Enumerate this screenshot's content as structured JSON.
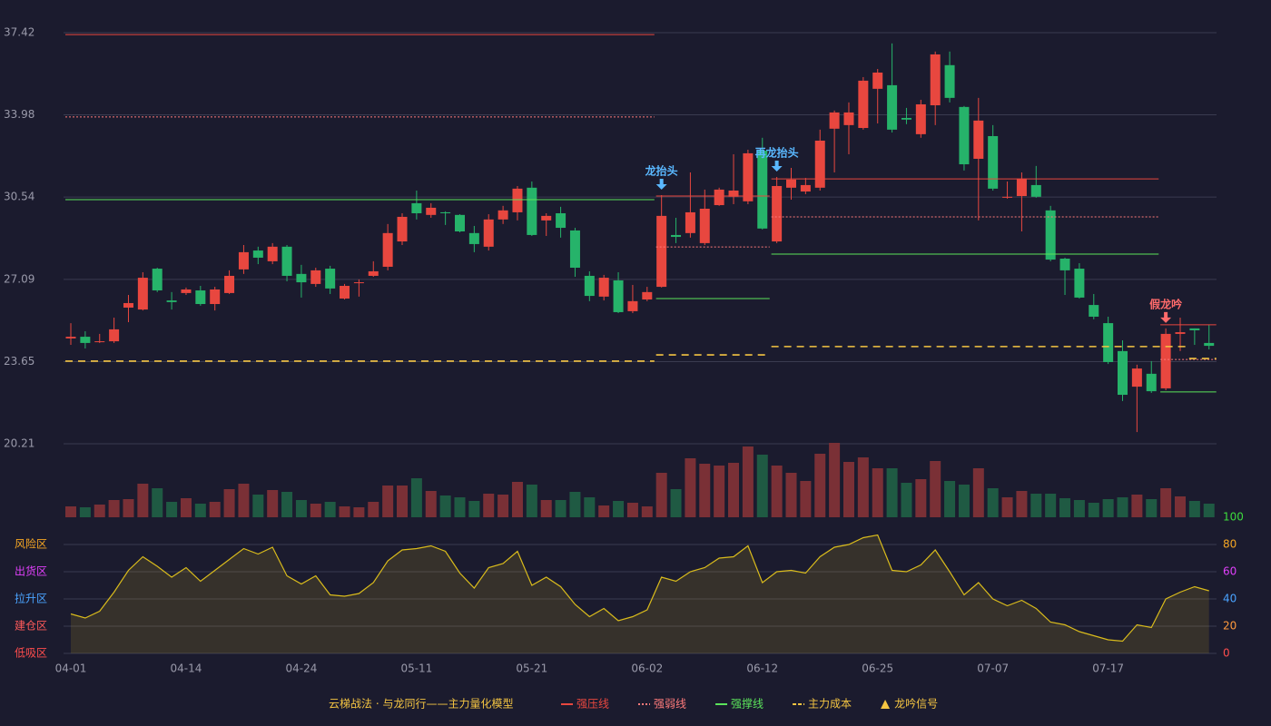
{
  "chart_data": [
    {
      "type": "candlestick",
      "categories": [
        "04-01",
        null,
        null,
        null,
        null,
        null,
        null,
        null,
        "04-14",
        null,
        null,
        null,
        null,
        null,
        null,
        null,
        "04-24",
        null,
        null,
        null,
        null,
        null,
        null,
        null,
        "05-11",
        null,
        null,
        null,
        null,
        null,
        null,
        null,
        "05-21",
        null,
        null,
        null,
        null,
        null,
        null,
        null,
        "06-02",
        null,
        null,
        null,
        null,
        null,
        null,
        null,
        "06-12",
        null,
        null,
        null,
        null,
        null,
        null,
        null,
        "06-25",
        null,
        null,
        null,
        null,
        null,
        null,
        null,
        "07-07",
        null,
        null,
        null,
        null,
        null,
        null,
        null,
        "07-17",
        null,
        null,
        null,
        null,
        null,
        null,
        null
      ],
      "open": [
        24.62,
        24.69,
        24.47,
        24.5,
        25.91,
        25.83,
        27.54,
        26.21,
        26.52,
        26.63,
        26.06,
        26.52,
        27.51,
        28.3,
        27.85,
        28.46,
        27.32,
        26.9,
        27.54,
        26.29,
        26.94,
        27.24,
        27.62,
        28.68,
        30.28,
        29.79,
        29.9,
        29.79,
        29.03,
        28.46,
        29.6,
        29.9,
        30.93,
        29.56,
        29.86,
        29.14,
        27.24,
        26.37,
        27.05,
        25.76,
        26.25,
        26.78,
        28.95,
        29.03,
        28.61,
        30.2,
        30.55,
        30.36,
        32.48,
        28.68,
        30.93,
        30.77,
        30.93,
        33.4,
        33.55,
        33.43,
        35.07,
        35.22,
        33.85,
        33.17,
        34.38,
        36.06,
        34.31,
        32.14,
        33.09,
        30.51,
        30.58,
        31.04,
        29.98,
        27.96,
        27.54,
        26.02,
        25.26,
        24.09,
        22.6,
        23.14,
        22.53,
        24.81,
        25.04,
        24.43
      ],
      "high": [
        25.26,
        24.92,
        24.81,
        25.49,
        26.44,
        27.39,
        27.58,
        26.56,
        26.75,
        26.82,
        26.78,
        27.47,
        28.53,
        28.46,
        28.61,
        28.53,
        27.7,
        27.58,
        27.66,
        26.9,
        27.09,
        27.85,
        29.41,
        29.86,
        30.81,
        30.28,
        29.94,
        29.82,
        29.33,
        29.82,
        30.17,
        31.0,
        31.19,
        29.86,
        30.13,
        29.25,
        27.43,
        27.28,
        27.39,
        26.86,
        26.78,
        30.62,
        29.67,
        31.57,
        30.85,
        30.93,
        32.33,
        32.52,
        33.02,
        31.38,
        31.76,
        31.34,
        33.36,
        34.16,
        34.5,
        35.56,
        35.9,
        36.97,
        34.27,
        34.61,
        36.63,
        36.63,
        34.35,
        34.69,
        33.55,
        31.19,
        31.57,
        31.84,
        30.17,
        28.0,
        27.77,
        26.48,
        25.53,
        24.54,
        23.52,
        23.67,
        25.04,
        25.49,
        25.04,
        25.19
      ],
      "low": [
        24.35,
        24.2,
        24.43,
        24.43,
        25.3,
        25.79,
        26.56,
        25.83,
        26.44,
        25.99,
        25.79,
        26.48,
        27.32,
        27.73,
        27.73,
        27.01,
        26.33,
        26.78,
        26.48,
        26.25,
        26.37,
        27.2,
        27.47,
        28.53,
        29.6,
        29.67,
        29.37,
        29.06,
        28.23,
        28.3,
        29.41,
        29.56,
        28.91,
        28.91,
        28.84,
        27.2,
        26.18,
        26.21,
        25.68,
        25.68,
        26.18,
        26.75,
        28.61,
        28.84,
        28.53,
        30.17,
        30.24,
        30.24,
        29.18,
        28.61,
        30.43,
        30.66,
        30.81,
        31.57,
        32.33,
        33.36,
        33.62,
        33.24,
        33.59,
        33.02,
        33.55,
        34.5,
        31.65,
        29.56,
        30.81,
        30.47,
        29.1,
        30.51,
        27.85,
        26.44,
        26.29,
        25.42,
        23.55,
        22.0,
        20.7,
        22.34,
        22.45,
        24.09,
        24.35,
        24.16
      ],
      "close": [
        24.69,
        24.43,
        24.5,
        25.0,
        26.1,
        27.16,
        26.63,
        26.14,
        26.67,
        26.06,
        26.67,
        27.24,
        28.23,
        28.0,
        28.46,
        27.24,
        26.97,
        27.47,
        26.71,
        26.82,
        26.97,
        27.43,
        29.03,
        29.71,
        29.86,
        30.09,
        29.86,
        29.1,
        28.57,
        29.6,
        29.98,
        30.89,
        28.95,
        29.75,
        29.25,
        27.58,
        26.4,
        27.16,
        25.72,
        26.18,
        26.56,
        29.75,
        28.87,
        29.9,
        30.05,
        30.85,
        30.81,
        32.37,
        29.22,
        31.0,
        31.27,
        31.04,
        32.9,
        34.08,
        34.08,
        35.41,
        35.75,
        33.36,
        33.78,
        34.42,
        36.51,
        34.69,
        31.91,
        33.74,
        30.89,
        30.55,
        31.31,
        30.55,
        27.92,
        27.47,
        26.33,
        25.53,
        23.63,
        22.26,
        23.36,
        22.41,
        24.81,
        24.88,
        24.96,
        24.31
      ],
      "volume": [
        12,
        11,
        14,
        19,
        20,
        37,
        32,
        17,
        21,
        15,
        17,
        31,
        37,
        25,
        30,
        28,
        19,
        15,
        17,
        12,
        11,
        17,
        35,
        35,
        43,
        29,
        24,
        22,
        18,
        26,
        25,
        39,
        36,
        19,
        19,
        28,
        22,
        13,
        18,
        16,
        12,
        49,
        31,
        65,
        59,
        57,
        60,
        78,
        69,
        57,
        49,
        40,
        70,
        82,
        61,
        66,
        54,
        54,
        38,
        42,
        62,
        40,
        36,
        54,
        32,
        22,
        29,
        26,
        26,
        21,
        19,
        16,
        20,
        22,
        25,
        20,
        32,
        23,
        18,
        15
      ],
      "colors": {
        "up": "#e8473f",
        "down": "#26b36a",
        "volume_up": "#7a3036",
        "volume_down": "#1f5a43"
      },
      "ylim": [
        20.21,
        37.42
      ],
      "yticks": [
        20.21,
        23.65,
        27.09,
        30.54,
        33.98,
        37.42
      ],
      "grid": true,
      "levels": [
        {
          "name": "强压线",
          "color": "#e8473f",
          "style": "solid",
          "segments": [
            {
              "value": 37.34,
              "from": 0,
              "to": 40
            },
            {
              "value": 30.58,
              "from": 41,
              "to": 48
            },
            {
              "value": 31.3,
              "from": 49,
              "to": 75
            },
            {
              "value": 25.19,
              "from": 76,
              "to": 79
            }
          ]
        },
        {
          "name": "强弱线",
          "color": "#ff7b7b",
          "style": "dotted",
          "segments": [
            {
              "value": 33.89,
              "from": 0,
              "to": 40
            },
            {
              "value": 28.45,
              "from": 41,
              "to": 48
            },
            {
              "value": 29.71,
              "from": 49,
              "to": 75
            },
            {
              "value": 23.74,
              "from": 76,
              "to": 79
            }
          ]
        },
        {
          "name": "强撑线",
          "color": "#5be35b",
          "style": "solid",
          "segments": [
            {
              "value": 30.43,
              "from": 0,
              "to": 40
            },
            {
              "value": 26.29,
              "from": 41,
              "to": 48
            },
            {
              "value": 28.15,
              "from": 49,
              "to": 75
            },
            {
              "value": 22.38,
              "from": 76,
              "to": 79
            }
          ]
        },
        {
          "name": "主力成本",
          "color": "#f5c542",
          "style": "dashed",
          "segments": [
            {
              "value": 23.67,
              "from": 0,
              "to": 40
            },
            {
              "value": 23.93,
              "from": 41,
              "to": 48
            },
            {
              "value": 24.28,
              "from": 49,
              "to": 77
            },
            {
              "value": 23.78,
              "from": 78,
              "to": 79
            }
          ]
        }
      ],
      "signals": {
        "name": "龙吟信号",
        "color": "#f5c542",
        "items": [
          {
            "index": 41,
            "label": "龙抬头",
            "color": "#5ab8ff"
          },
          {
            "index": 49,
            "label": "再龙抬头",
            "color": "#5ab8ff"
          },
          {
            "index": 76,
            "label": "假龙吟",
            "color": "#ff6b6b"
          }
        ]
      },
      "legend_title": "云梯战法 · 与龙同行——主力量化模型"
    },
    {
      "type": "area",
      "values": [
        29,
        26,
        31,
        45,
        61,
        71,
        64,
        56,
        63,
        53,
        61,
        69,
        77,
        73,
        78,
        57,
        51,
        57,
        43,
        42,
        44,
        52,
        68,
        76,
        77,
        79,
        75,
        59,
        48,
        63,
        66,
        75,
        50,
        56,
        49,
        36,
        27,
        33,
        24,
        27,
        32,
        56,
        53,
        60,
        63,
        70,
        71,
        79,
        52,
        60,
        61,
        59,
        71,
        78,
        80,
        85,
        87,
        61,
        60,
        65,
        76,
        60,
        43,
        52,
        40,
        35,
        39,
        33,
        23,
        21,
        16,
        13,
        10,
        9,
        21,
        19,
        40,
        45,
        49,
        46
      ],
      "color": "#d9bb1c",
      "ylim": [
        0,
        100
      ],
      "yticks": [
        0,
        20,
        40,
        60,
        80,
        100
      ],
      "ytick_colors": [
        "#ff4d4d",
        "#ff9a3d",
        "#4aa3ff",
        "#e040fb",
        "#f5a623",
        "#3ddc3d"
      ],
      "zones": [
        {
          "value": 80,
          "label": "风险区",
          "color": "#f5a623"
        },
        {
          "value": 60,
          "label": "出货区",
          "color": "#e040fb"
        },
        {
          "value": 40,
          "label": "拉升区",
          "color": "#4aa3ff"
        },
        {
          "value": 20,
          "label": "建仓区",
          "color": "#ff5a5a"
        },
        {
          "value": 0,
          "label": "低吸区",
          "color": "#ff4d4d"
        }
      ]
    }
  ]
}
